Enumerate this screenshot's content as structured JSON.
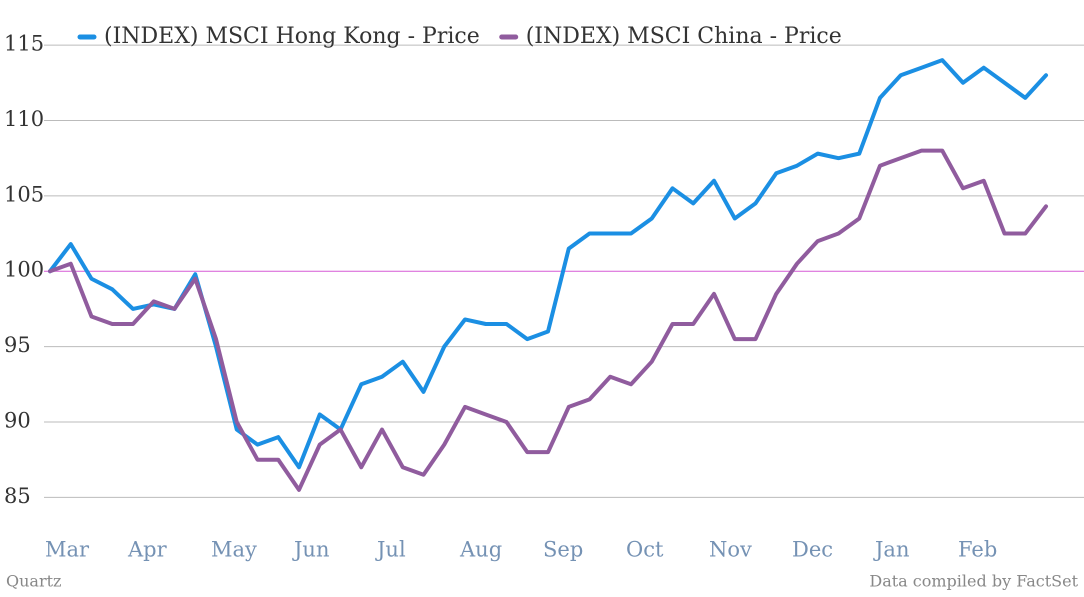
{
  "chart_data": {
    "type": "line",
    "series": [
      {
        "name": "(INDEX) MSCI Hong Kong - Price",
        "color": "#1b8fe3",
        "values": [
          100,
          101.8,
          99.5,
          98.8,
          97.5,
          97.8,
          97.5,
          99.8,
          95,
          89.5,
          88.5,
          89,
          87,
          90.5,
          89.5,
          92.5,
          93,
          94,
          92,
          95,
          96.8,
          96.5,
          96.5,
          95.5,
          96,
          101.5,
          102.5,
          102.5,
          102.5,
          103.5,
          105.5,
          104.5,
          106,
          103.5,
          104.5,
          106.5,
          107,
          107.8,
          107.5,
          107.8,
          111.5,
          113,
          113.5,
          114,
          112.5,
          113.5,
          112.5,
          111.5,
          113
        ]
      },
      {
        "name": "(INDEX) MSCI China - Price",
        "color": "#905c9e",
        "values": [
          100,
          100.5,
          97,
          96.5,
          96.5,
          98,
          97.5,
          99.5,
          95.5,
          90,
          87.5,
          87.5,
          85.5,
          88.5,
          89.5,
          87,
          89.5,
          87,
          86.5,
          88.5,
          91,
          90.5,
          90,
          88,
          88,
          91,
          91.5,
          93,
          92.5,
          94,
          96.5,
          96.5,
          98.5,
          95.5,
          95.5,
          98.5,
          100.5,
          102,
          102.5,
          103.5,
          107,
          107.5,
          108,
          108,
          105.5,
          106,
          102.5,
          102.5,
          104.3
        ]
      }
    ],
    "categories": [
      "Mar",
      null,
      null,
      null,
      "Apr",
      null,
      null,
      null,
      "May",
      null,
      null,
      null,
      "Jun",
      null,
      null,
      null,
      "Jul",
      null,
      null,
      null,
      "Aug",
      null,
      null,
      null,
      "Sep",
      null,
      null,
      null,
      "Oct",
      null,
      null,
      null,
      "Nov",
      null,
      null,
      null,
      "Dec",
      null,
      null,
      null,
      "Jan",
      null,
      null,
      null,
      "Feb",
      null,
      null,
      null,
      null
    ],
    "ylim": [
      83.5,
      116
    ],
    "yticks": [
      85,
      90,
      95,
      100,
      105,
      110,
      115
    ],
    "grid": true,
    "baseline": 100,
    "baseline_color": "#d65ad6",
    "source_left": "Quartz",
    "source_right": "Data compiled by FactSet"
  }
}
